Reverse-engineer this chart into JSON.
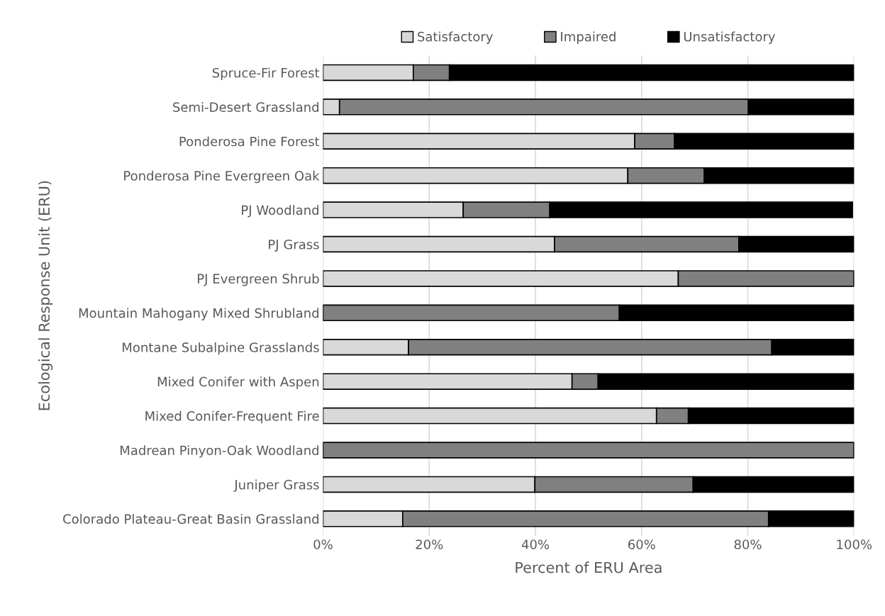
{
  "chart_data": {
    "type": "bar",
    "orientation": "horizontal",
    "stacked": true,
    "xlabel": "Percent of ERU Area",
    "ylabel": "Ecological Response Unit (ERU)",
    "categories": [
      "Spruce-Fir Forest",
      "Semi-Desert Grassland",
      "Ponderosa Pine Forest",
      "Ponderosa Pine Evergreen Oak",
      "PJ Woodland",
      "PJ Grass",
      "PJ Evergreen Shrub",
      "Mountain Mahogany Mixed Shrubland",
      "Montane Subalpine Grasslands",
      "Mixed Conifer with Aspen",
      "Mixed Conifer-Frequent Fire",
      "Madrean Pinyon-Oak Woodland",
      "Juniper Grass",
      "Colorado Plateau-Great Basin Grassland"
    ],
    "series": [
      {
        "name": "Satisfactory",
        "color": "#d9d9d9",
        "values": [
          17.0,
          3.1,
          58.7,
          57.4,
          26.4,
          43.6,
          66.9,
          0,
          16.1,
          46.9,
          62.8,
          0,
          39.9,
          15.0
        ]
      },
      {
        "name": "Impaired",
        "color": "#808080",
        "values": [
          6.8,
          77.0,
          7.5,
          14.4,
          16.3,
          34.7,
          33.1,
          55.8,
          68.4,
          4.9,
          6.0,
          100,
          29.8,
          68.9
        ]
      },
      {
        "name": "Unsatisfactory",
        "color": "#000000",
        "values": [
          76.2,
          19.9,
          33.8,
          28.2,
          57.0,
          21.7,
          0,
          44.2,
          15.5,
          48.2,
          31.2,
          0,
          30.3,
          16.1
        ]
      }
    ],
    "xlim": [
      0,
      100
    ],
    "xticks": [
      {
        "value": 0,
        "label": "0%"
      },
      {
        "value": 20,
        "label": "20%"
      },
      {
        "value": 40,
        "label": "40%"
      },
      {
        "value": 60,
        "label": "60%"
      },
      {
        "value": 80,
        "label": "80%"
      },
      {
        "value": 100,
        "label": "100%"
      }
    ],
    "grid": "x",
    "legend": "top"
  }
}
